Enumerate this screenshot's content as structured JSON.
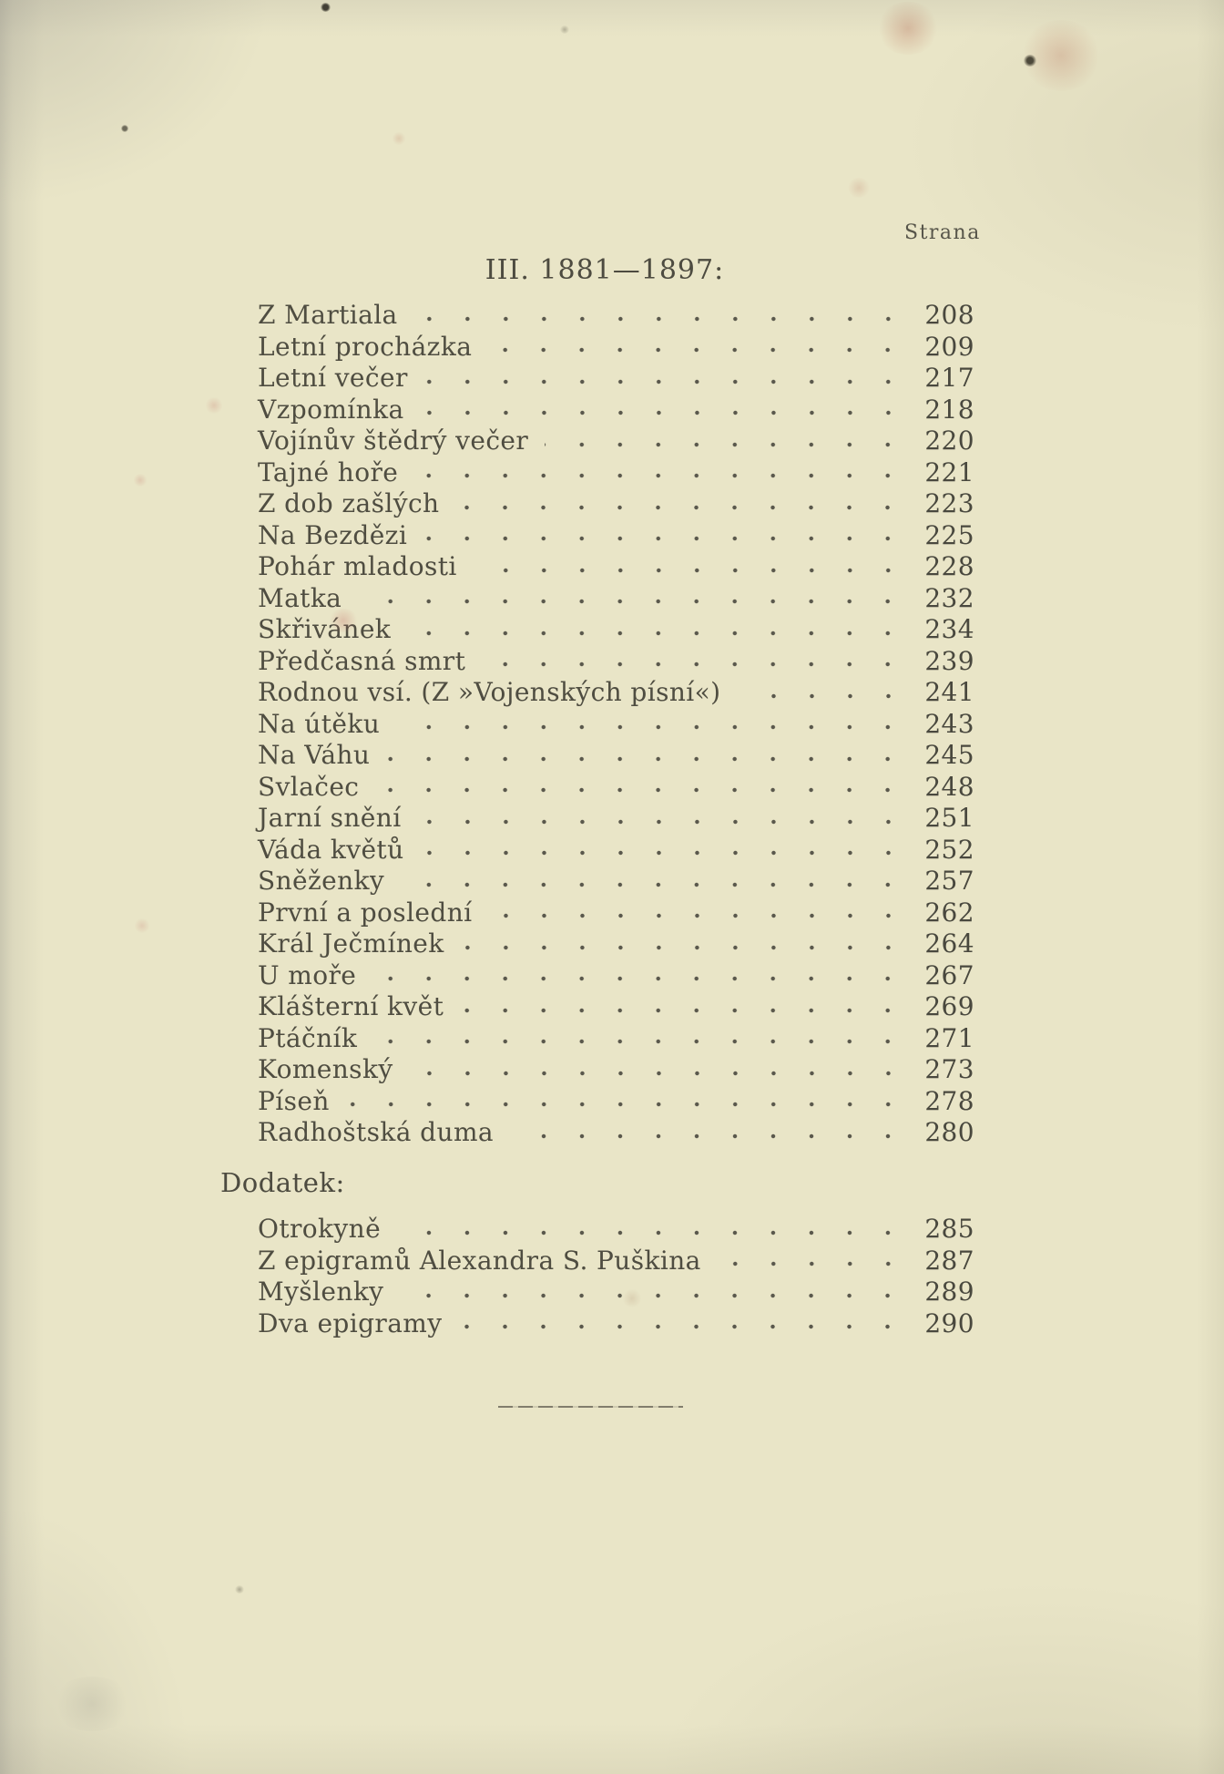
{
  "page": {
    "column_header": "Strana",
    "section_heading": "III. 1881—1897:",
    "entries": [
      {
        "title": "Z Martiala",
        "page": "208"
      },
      {
        "title": "Letní procházka",
        "page": "209"
      },
      {
        "title": "Letní večer",
        "page": "217"
      },
      {
        "title": "Vzpomínka",
        "page": "218"
      },
      {
        "title": "Vojínův štědrý večer",
        "page": "220"
      },
      {
        "title": "Tajné hoře",
        "page": "221"
      },
      {
        "title": "Z dob zašlých",
        "page": "223"
      },
      {
        "title": "Na Bezdězi",
        "page": "225"
      },
      {
        "title": "Pohár mladosti",
        "page": "228"
      },
      {
        "title": "Matka",
        "page": "232"
      },
      {
        "title": "Skřivánek",
        "page": "234"
      },
      {
        "title": "Předčasná smrt",
        "page": "239"
      },
      {
        "title": "Rodnou vsí. (Z »Vojenských písní«)",
        "page": "241"
      },
      {
        "title": "Na útěku",
        "page": "243"
      },
      {
        "title": "Na Váhu",
        "page": "245"
      },
      {
        "title": "Svlačec",
        "page": "248"
      },
      {
        "title": "Jarní snění",
        "page": "251"
      },
      {
        "title": "Váda květů",
        "page": "252"
      },
      {
        "title": "Sněženky",
        "page": "257"
      },
      {
        "title": "První a poslední",
        "page": "262"
      },
      {
        "title": "Král Ječmínek",
        "page": "264"
      },
      {
        "title": "U moře",
        "page": "267"
      },
      {
        "title": "Klášterní květ",
        "page": "269"
      },
      {
        "title": "Ptáčník",
        "page": "271"
      },
      {
        "title": "Komenský",
        "page": "273"
      },
      {
        "title": "Píseň",
        "page": "278"
      },
      {
        "title": "Radhoštská duma",
        "page": "280"
      }
    ],
    "appendix_heading": "Dodatek:",
    "appendix_entries": [
      {
        "title": "Otrokyně",
        "page": "285"
      },
      {
        "title": "Z epigramů Alexandra S. Puškina",
        "page": "287"
      },
      {
        "title": "Myšlenky",
        "page": "289"
      },
      {
        "title": "Dva epigramy",
        "page": "290"
      }
    ],
    "colors": {
      "paper": "#e9e5c7",
      "ink": "#4f4d41"
    }
  }
}
